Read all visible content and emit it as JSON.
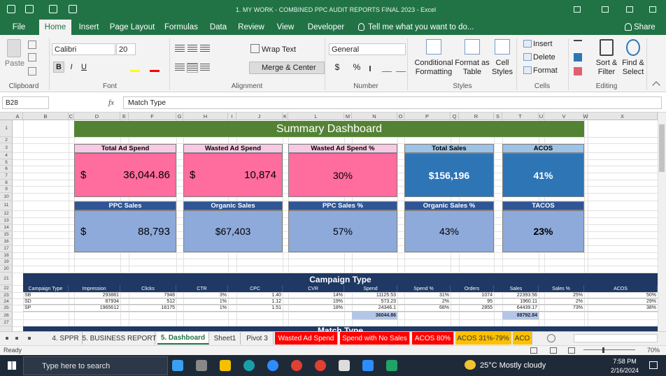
{
  "title_bar": "1. MY WORK - COMBINED PPC AUDIT REPORTS FINAL 2023 - Excel",
  "ribbon": {
    "tabs": [
      "File",
      "Home",
      "Insert",
      "Page Layout",
      "Formulas",
      "Data",
      "Review",
      "View",
      "Developer"
    ],
    "active_tab": 1,
    "tell_me": "Tell me what you want to do...",
    "share": "Share",
    "paste": "Paste",
    "font_name": "Calibri",
    "font_size": "20",
    "font_buttons": [
      "B",
      "I",
      "U"
    ],
    "wrap_text": "Wrap Text",
    "merge_center": "Merge & Center",
    "number_format": "General",
    "number_buttons": [
      "$",
      "%"
    ],
    "styles": [
      "Conditional Formatting",
      "Format as Table",
      "Cell Styles"
    ],
    "cells": [
      "Insert",
      "Delete",
      "Format"
    ],
    "editing": [
      "Sort & Filter",
      "Find & Select"
    ],
    "groups": [
      "Clipboard",
      "Font",
      "Alignment",
      "Number",
      "Styles",
      "Cells",
      "Editing"
    ]
  },
  "formula_bar": {
    "cell": "B28",
    "fx": "fx",
    "content": "Match Type"
  },
  "columns": [
    "A",
    "B",
    "C",
    "D",
    "E",
    "F",
    "G",
    "H",
    "I",
    "J",
    "K",
    "L",
    "M",
    "N",
    "O",
    "P",
    "Q",
    "R",
    "S",
    "T",
    "U",
    "V",
    "W",
    "X"
  ],
  "rows": [
    1,
    2,
    3,
    4,
    5,
    6,
    7,
    8,
    9,
    10,
    11,
    12,
    13,
    14,
    15,
    16,
    17,
    18,
    19,
    20,
    21,
    22,
    23,
    24,
    25,
    26,
    27
  ],
  "dashboard": {
    "title": "Summary Dashboard",
    "cards": [
      {
        "label": "Total Ad Spend",
        "currency": "$",
        "value": "36,044.86"
      },
      {
        "label": "Wasted Ad Spend",
        "currency": "$",
        "value": "10,874"
      },
      {
        "label": "Wasted Ad Spend %",
        "value": "30%"
      },
      {
        "label": "Total Sales",
        "value": "$156,196"
      },
      {
        "label": "ACOS",
        "value": "41%"
      },
      {
        "label": "PPC Sales",
        "currency": "$",
        "value": "88,793"
      },
      {
        "label": "Organic Sales",
        "value": "$67,403"
      },
      {
        "label": "PPC Sales %",
        "value": "57%"
      },
      {
        "label": "Organic Sales %",
        "value": "43%"
      },
      {
        "label": "TACOS",
        "value": "23%"
      }
    ]
  },
  "campaign_table": {
    "title": "Campaign Type",
    "headers": [
      "Campaign Type",
      "Impression",
      "Clicks",
      "CTR",
      "CPC",
      "CVR",
      "Spend",
      "Spend %",
      "Orders",
      "Sales",
      "Sales %",
      "ACOS"
    ],
    "rows": [
      [
        "SB",
        "293881",
        "7948",
        "3%",
        "1.40",
        "14%",
        "11125.53",
        "31%",
        "1074",
        "22393.56",
        "25%",
        "50%"
      ],
      [
        "SD",
        "87934",
        "512",
        "1%",
        "1.12",
        "19%",
        "573.23",
        "2%",
        "95",
        "1960.11",
        "2%",
        "29%"
      ],
      [
        "SP",
        "1965612",
        "16175",
        "1%",
        "1.51",
        "18%",
        "24346.1",
        "68%",
        "2855",
        "64439.17",
        "73%",
        "38%"
      ]
    ],
    "total_spend": "36044.86",
    "total_sales": "88792.84"
  },
  "next_section": "Match Type",
  "sheet_tabs": [
    "4. SPPR",
    "5. BUSINESS REPORT",
    "5. Dashboard",
    "Sheet1",
    "Pivot 3",
    "Wasted Ad Spend",
    "Spend with No Sales",
    "ACOS 80%",
    "ACOS 31%-79%",
    "ACO"
  ],
  "active_sheet": 2,
  "status": {
    "mode": "Ready",
    "zoom": "70%"
  },
  "taskbar": {
    "search": "Type here to search",
    "weather": "25°C  Mostly cloudy",
    "time": "7:58 PM",
    "date": "2/16/2024"
  }
}
